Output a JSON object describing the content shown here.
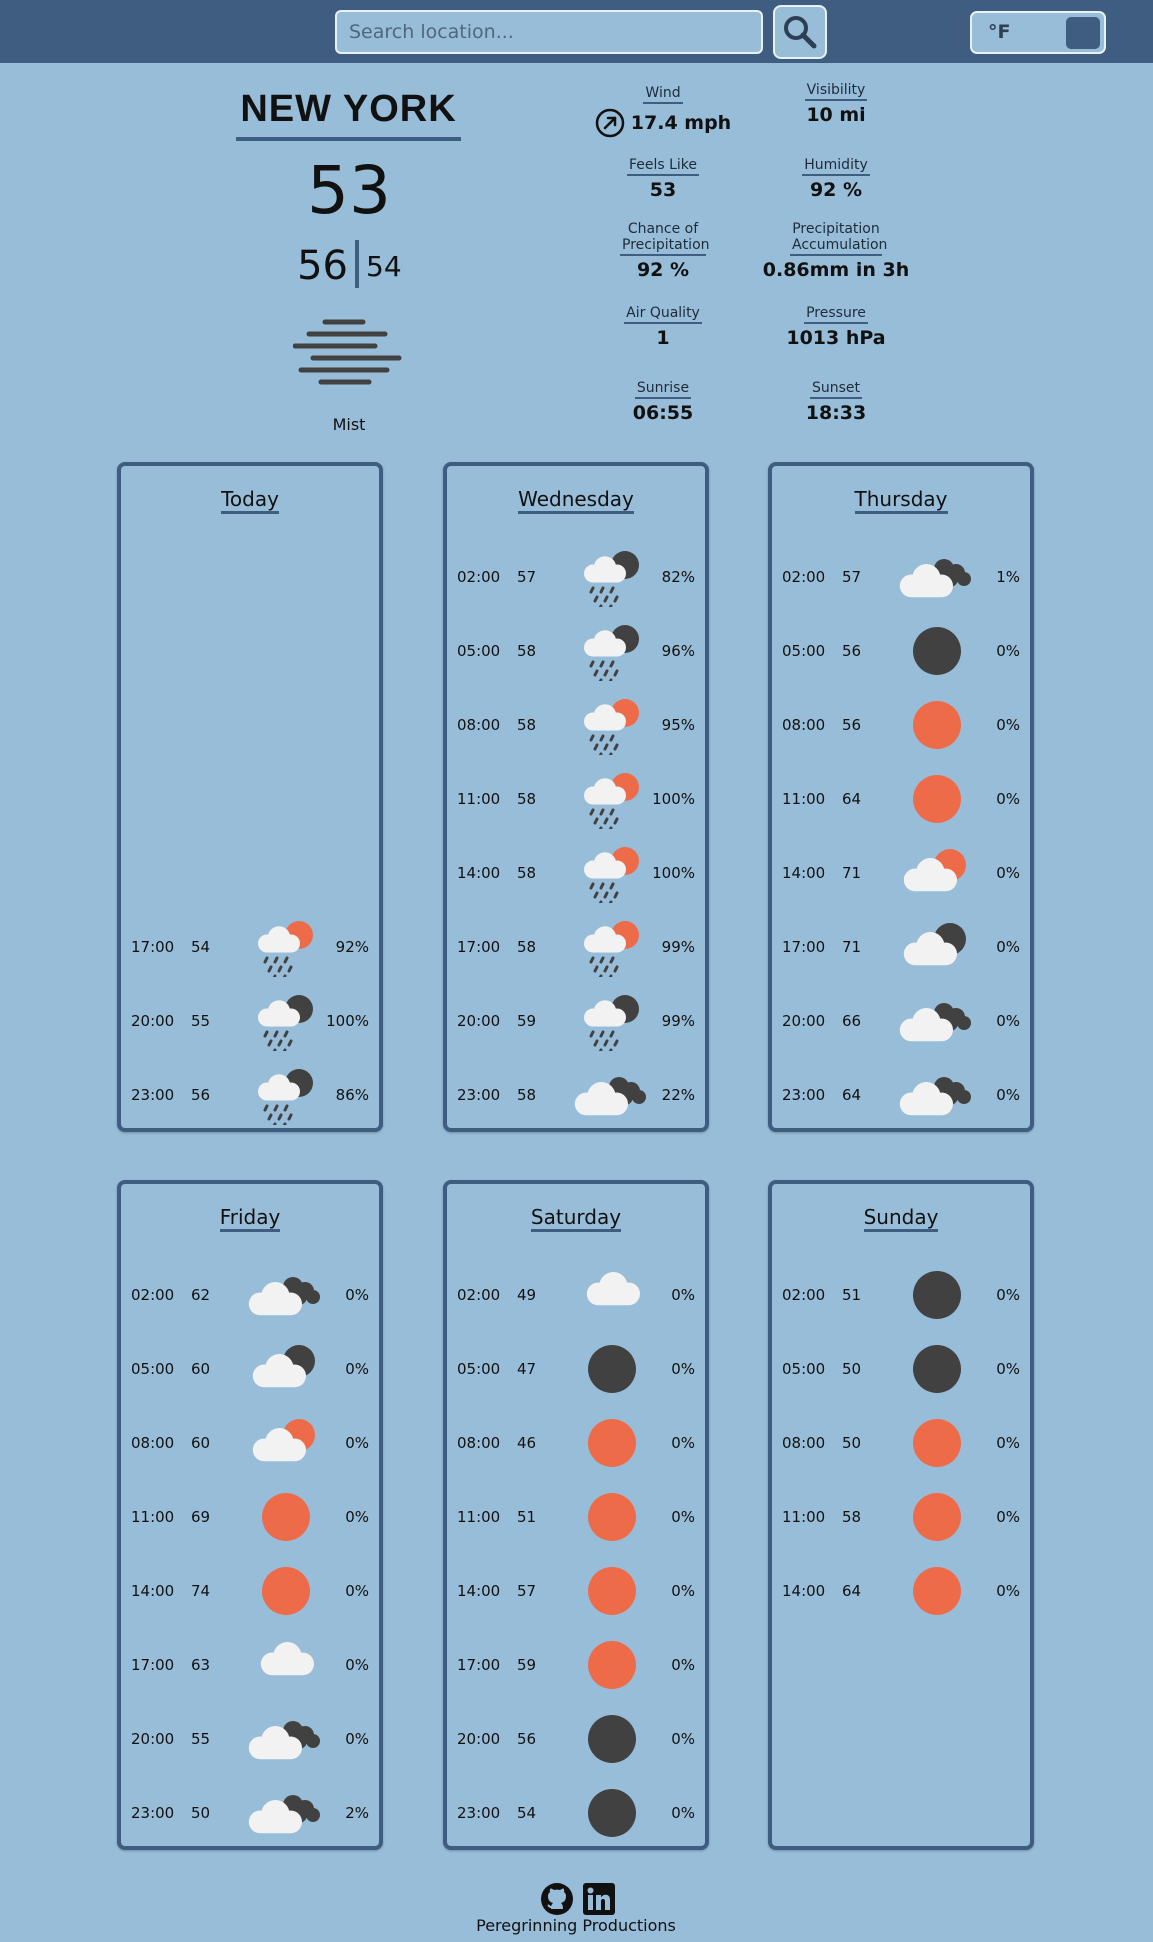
{
  "search": {
    "placeholder": "Search location..."
  },
  "unit_toggle": {
    "label": "°F"
  },
  "current": {
    "city": "NEW YORK",
    "temp": "53",
    "high": "56",
    "low": "54",
    "condition": "Mist",
    "icon": "mist-icon"
  },
  "stats": [
    {
      "label": "Wind",
      "value": "17.4 mph",
      "icon": "wind-direction-icon"
    },
    {
      "label": "Visibility",
      "value": "10 mi"
    },
    {
      "label": "Feels Like",
      "value": "53"
    },
    {
      "label": "Humidity",
      "value": "92 %"
    },
    {
      "label": "Chance of Precipitation",
      "value": "92 %"
    },
    {
      "label": "Precipitation Accumulation",
      "value": "0.86mm in 3h"
    },
    {
      "label": "Air Quality",
      "value": "1"
    },
    {
      "label": "Pressure",
      "value": "1013 hPa"
    },
    {
      "label": "Sunrise",
      "value": "06:55"
    },
    {
      "label": "Sunset",
      "value": "18:33"
    }
  ],
  "forecast": [
    {
      "day": "Today",
      "hours": [
        {
          "time": "17:00",
          "temp": "54",
          "icon": "rain-sun",
          "pop": "92%"
        },
        {
          "time": "20:00",
          "temp": "55",
          "icon": "rain-moon",
          "pop": "100%"
        },
        {
          "time": "23:00",
          "temp": "56",
          "icon": "rain-moon",
          "pop": "86%"
        }
      ]
    },
    {
      "day": "Wednesday",
      "hours": [
        {
          "time": "02:00",
          "temp": "57",
          "icon": "rain-moon",
          "pop": "82%"
        },
        {
          "time": "05:00",
          "temp": "58",
          "icon": "rain-moon",
          "pop": "96%"
        },
        {
          "time": "08:00",
          "temp": "58",
          "icon": "rain-sun",
          "pop": "95%"
        },
        {
          "time": "11:00",
          "temp": "58",
          "icon": "rain-sun",
          "pop": "100%"
        },
        {
          "time": "14:00",
          "temp": "58",
          "icon": "rain-sun",
          "pop": "100%"
        },
        {
          "time": "17:00",
          "temp": "58",
          "icon": "rain-sun",
          "pop": "99%"
        },
        {
          "time": "20:00",
          "temp": "59",
          "icon": "rain-moon",
          "pop": "99%"
        },
        {
          "time": "23:00",
          "temp": "58",
          "icon": "broken-clouds",
          "pop": "22%"
        }
      ]
    },
    {
      "day": "Thursday",
      "hours": [
        {
          "time": "02:00",
          "temp": "57",
          "icon": "broken-clouds",
          "pop": "1%"
        },
        {
          "time": "05:00",
          "temp": "56",
          "icon": "clear-night",
          "pop": "0%"
        },
        {
          "time": "08:00",
          "temp": "56",
          "icon": "clear-day",
          "pop": "0%"
        },
        {
          "time": "11:00",
          "temp": "64",
          "icon": "clear-day",
          "pop": "0%"
        },
        {
          "time": "14:00",
          "temp": "71",
          "icon": "cloud-sun",
          "pop": "0%"
        },
        {
          "time": "17:00",
          "temp": "71",
          "icon": "cloud-moon",
          "pop": "0%"
        },
        {
          "time": "20:00",
          "temp": "66",
          "icon": "broken-clouds",
          "pop": "0%"
        },
        {
          "time": "23:00",
          "temp": "64",
          "icon": "broken-clouds",
          "pop": "0%"
        }
      ]
    },
    {
      "day": "Friday",
      "hours": [
        {
          "time": "02:00",
          "temp": "62",
          "icon": "broken-clouds",
          "pop": "0%"
        },
        {
          "time": "05:00",
          "temp": "60",
          "icon": "cloud-moon",
          "pop": "0%"
        },
        {
          "time": "08:00",
          "temp": "60",
          "icon": "cloud-sun",
          "pop": "0%"
        },
        {
          "time": "11:00",
          "temp": "69",
          "icon": "clear-day",
          "pop": "0%"
        },
        {
          "time": "14:00",
          "temp": "74",
          "icon": "clear-day",
          "pop": "0%"
        },
        {
          "time": "17:00",
          "temp": "63",
          "icon": "cloud",
          "pop": "0%"
        },
        {
          "time": "20:00",
          "temp": "55",
          "icon": "broken-clouds",
          "pop": "0%"
        },
        {
          "time": "23:00",
          "temp": "50",
          "icon": "broken-clouds",
          "pop": "2%"
        }
      ]
    },
    {
      "day": "Saturday",
      "hours": [
        {
          "time": "02:00",
          "temp": "49",
          "icon": "cloud",
          "pop": "0%"
        },
        {
          "time": "05:00",
          "temp": "47",
          "icon": "clear-night",
          "pop": "0%"
        },
        {
          "time": "08:00",
          "temp": "46",
          "icon": "clear-day",
          "pop": "0%"
        },
        {
          "time": "11:00",
          "temp": "51",
          "icon": "clear-day",
          "pop": "0%"
        },
        {
          "time": "14:00",
          "temp": "57",
          "icon": "clear-day",
          "pop": "0%"
        },
        {
          "time": "17:00",
          "temp": "59",
          "icon": "clear-day",
          "pop": "0%"
        },
        {
          "time": "20:00",
          "temp": "56",
          "icon": "clear-night",
          "pop": "0%"
        },
        {
          "time": "23:00",
          "temp": "54",
          "icon": "clear-night",
          "pop": "0%"
        }
      ]
    },
    {
      "day": "Sunday",
      "hours": [
        {
          "time": "02:00",
          "temp": "51",
          "icon": "clear-night",
          "pop": "0%"
        },
        {
          "time": "05:00",
          "temp": "50",
          "icon": "clear-night",
          "pop": "0%"
        },
        {
          "time": "08:00",
          "temp": "50",
          "icon": "clear-day",
          "pop": "0%"
        },
        {
          "time": "11:00",
          "temp": "58",
          "icon": "clear-day",
          "pop": "0%"
        },
        {
          "time": "14:00",
          "temp": "64",
          "icon": "clear-day",
          "pop": "0%"
        }
      ]
    }
  ],
  "footer": {
    "text": "Peregrinning Productions",
    "icons": [
      "github-icon",
      "linkedin-icon"
    ]
  },
  "colors": {
    "header": "#3f5d80",
    "background": "#98bdd8",
    "sun": "#ee6b4a",
    "moon": "#414141",
    "cloud": "#f2f2f2"
  }
}
